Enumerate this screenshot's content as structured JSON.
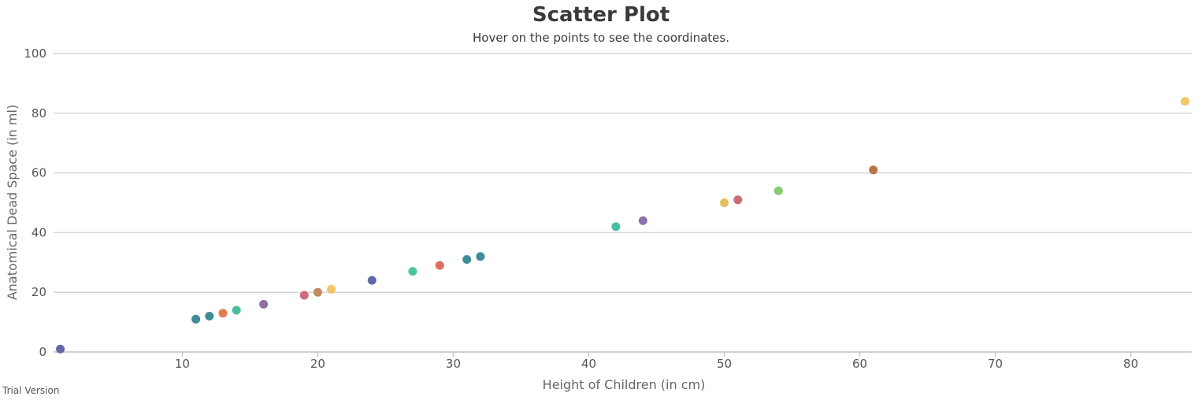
{
  "chart_data": {
    "type": "scatter",
    "title": "Scatter Plot",
    "subtitle": "Hover on the points to see the coordinates.",
    "xlabel": "Height of Children (in cm)",
    "ylabel": "Anatomical Dead Space (in ml)",
    "xlim": [
      0.5,
      84.5
    ],
    "ylim": [
      0,
      100
    ],
    "x_ticks": [
      10,
      20,
      30,
      40,
      50,
      60,
      70,
      80
    ],
    "y_ticks": [
      0,
      20,
      40,
      60,
      80,
      100
    ],
    "grid": true,
    "points": [
      {
        "x": 1,
        "y": 1,
        "color": "#6467a6"
      },
      {
        "x": 11,
        "y": 11,
        "color": "#3d8c97"
      },
      {
        "x": 12,
        "y": 12,
        "color": "#3d8c97"
      },
      {
        "x": 13,
        "y": 13,
        "color": "#e07b4d"
      },
      {
        "x": 14,
        "y": 14,
        "color": "#4cbea0"
      },
      {
        "x": 16,
        "y": 16,
        "color": "#8d70a6"
      },
      {
        "x": 19,
        "y": 19,
        "color": "#cc6b7a"
      },
      {
        "x": 20,
        "y": 20,
        "color": "#c08a5a"
      },
      {
        "x": 21,
        "y": 21,
        "color": "#f6c46a"
      },
      {
        "x": 24,
        "y": 24,
        "color": "#6467a6"
      },
      {
        "x": 27,
        "y": 27,
        "color": "#4cc4a0"
      },
      {
        "x": 29,
        "y": 29,
        "color": "#dc6e62"
      },
      {
        "x": 31,
        "y": 31,
        "color": "#3d8c97"
      },
      {
        "x": 32,
        "y": 32,
        "color": "#3d8c97"
      },
      {
        "x": 42,
        "y": 42,
        "color": "#4cbea0"
      },
      {
        "x": 44,
        "y": 44,
        "color": "#8d70a6"
      },
      {
        "x": 50,
        "y": 50,
        "color": "#e3c15f"
      },
      {
        "x": 51,
        "y": 51,
        "color": "#cc6b7a"
      },
      {
        "x": 54,
        "y": 54,
        "color": "#86c96e"
      },
      {
        "x": 61,
        "y": 61,
        "color": "#b8744c"
      },
      {
        "x": 84,
        "y": 84,
        "color": "#f6c46a"
      }
    ]
  },
  "footer": {
    "watermark": "Trial Version"
  }
}
